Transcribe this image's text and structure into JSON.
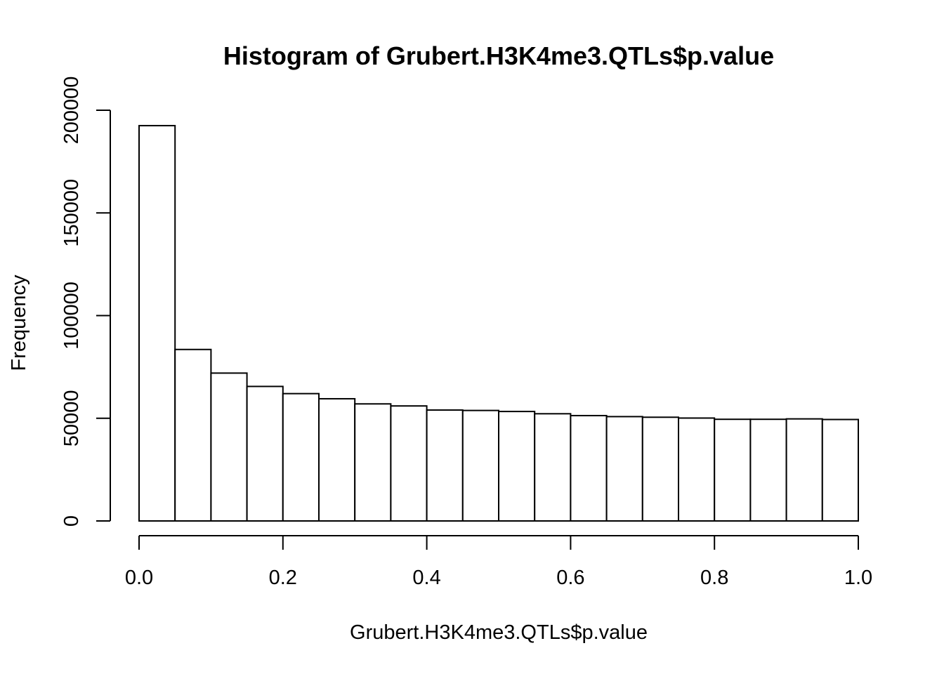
{
  "chart_data": {
    "type": "bar",
    "title": "Histogram of Grubert.H3K4me3.QTLs$p.value",
    "xlabel": "Grubert.H3K4me3.QTLs$p.value",
    "ylabel": "Frequency",
    "xlim": [
      0,
      1
    ],
    "ylim": [
      0,
      200000
    ],
    "x_ticks": [
      "0.0",
      "0.2",
      "0.4",
      "0.6",
      "0.8",
      "1.0"
    ],
    "y_ticks": [
      "0",
      "50000",
      "100000",
      "150000",
      "200000"
    ],
    "bin_edges": [
      0,
      0.05,
      0.1,
      0.15,
      0.2,
      0.25,
      0.3,
      0.35,
      0.4,
      0.45,
      0.5,
      0.55,
      0.6,
      0.65,
      0.7,
      0.75,
      0.8,
      0.85,
      0.9,
      0.95,
      1.0
    ],
    "values": [
      192500,
      83500,
      72000,
      65500,
      62000,
      59500,
      57000,
      56000,
      54000,
      53800,
      53300,
      52200,
      51300,
      50800,
      50500,
      50100,
      49500,
      49500,
      49700,
      49400
    ],
    "grid": false,
    "legend": "none"
  }
}
